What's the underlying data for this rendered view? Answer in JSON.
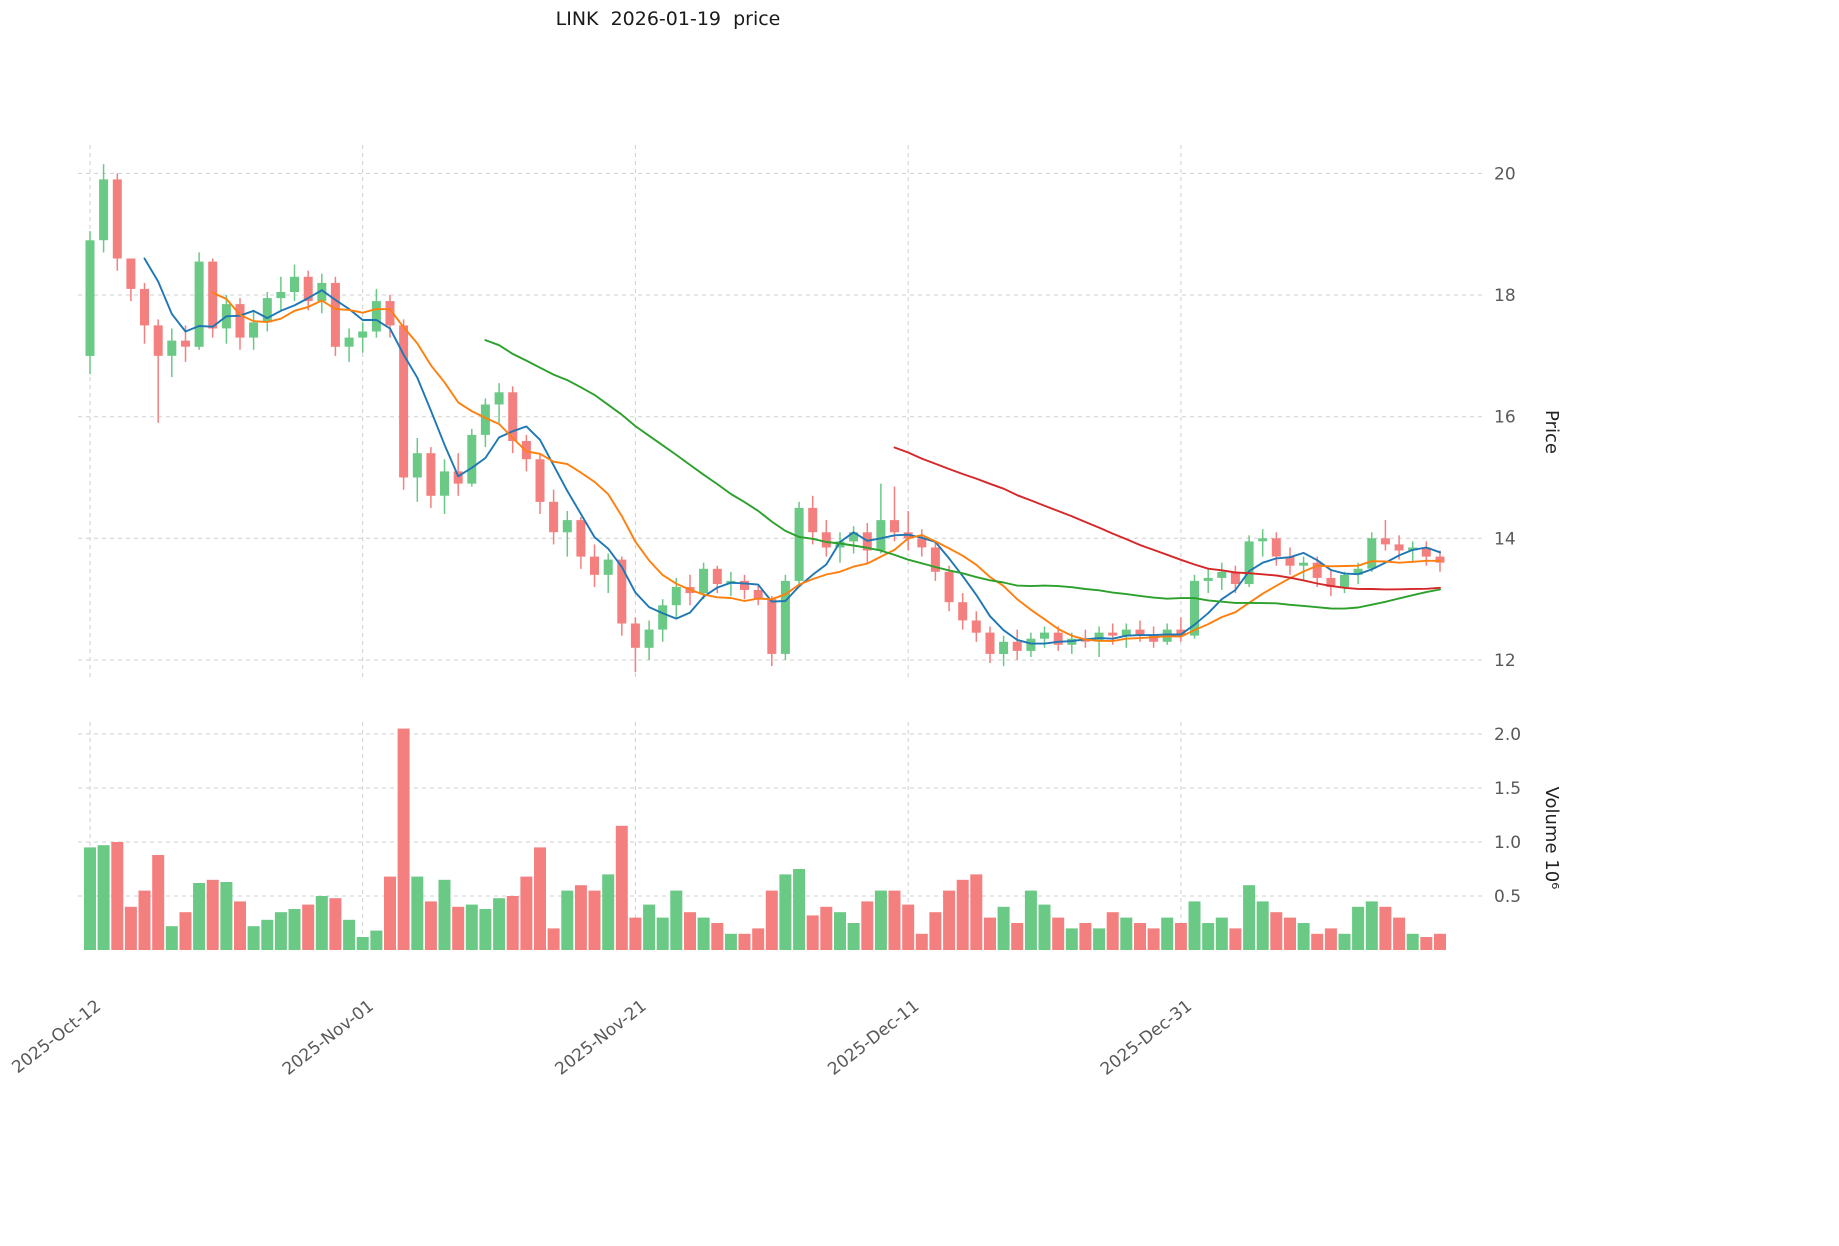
{
  "chart_data": {
    "type": "candlestick",
    "title": "LINK  2026-01-19  price",
    "ylabel_price": "Price",
    "ylabel_volume": "Volume 10⁶",
    "x_ticks": [
      {
        "index": 0,
        "label": "2025-Oct-12"
      },
      {
        "index": 20,
        "label": "2025-Nov-01"
      },
      {
        "index": 40,
        "label": "2025-Nov-21"
      },
      {
        "index": 60,
        "label": "2025-Dec-11"
      },
      {
        "index": 80,
        "label": "2025-Dec-31"
      }
    ],
    "price_ticks": [
      12,
      14,
      16,
      18,
      20
    ],
    "volume_ticks": [
      0.5,
      1.0,
      1.5,
      2.0
    ],
    "price_ylim": [
      11.5,
      20.6
    ],
    "volume_ylim": [
      0,
      2.2
    ],
    "grid": true,
    "moving_averages": [
      {
        "window": 5,
        "color": "#1f77b4"
      },
      {
        "window": 10,
        "color": "#ff7f0e"
      },
      {
        "window": 30,
        "color": "#2ca02c"
      },
      {
        "window": 60,
        "color": "#d62728"
      }
    ],
    "colors": {
      "up": "#69c985",
      "down": "#f37f7f",
      "grid": "#cfcfcf",
      "text": "#595959",
      "title": "#1a1a1a"
    },
    "open": [
      17.0,
      18.9,
      19.9,
      18.6,
      18.1,
      17.5,
      17.0,
      17.25,
      17.15,
      18.55,
      17.45,
      17.85,
      17.3,
      17.55,
      17.95,
      18.05,
      18.3,
      17.9,
      18.2,
      17.15,
      17.3,
      17.4,
      17.9,
      17.5,
      15.0,
      15.4,
      14.7,
      15.1,
      14.9,
      15.7,
      16.2,
      16.4,
      15.6,
      15.3,
      14.6,
      14.1,
      14.3,
      13.7,
      13.4,
      13.65,
      12.6,
      12.2,
      12.5,
      12.9,
      13.2,
      13.1,
      13.5,
      13.25,
      13.3,
      13.15,
      13.0,
      12.1,
      13.3,
      14.5,
      14.1,
      13.85,
      13.95,
      14.1,
      13.8,
      14.3,
      14.1,
      14.0,
      13.85,
      13.45,
      12.95,
      12.65,
      12.45,
      12.1,
      12.3,
      12.15,
      12.35,
      12.45,
      12.25,
      12.35,
      12.3,
      12.45,
      12.4,
      12.5,
      12.4,
      12.3,
      12.5,
      12.4,
      13.3,
      13.35,
      13.45,
      13.25,
      13.95,
      14.0,
      13.7,
      13.55,
      13.6,
      13.35,
      13.2,
      13.4,
      13.5,
      14.0,
      13.9,
      13.8,
      13.85,
      13.7
    ],
    "high": [
      19.05,
      20.15,
      20.0,
      18.35,
      18.2,
      17.6,
      17.45,
      17.5,
      18.7,
      18.6,
      18.0,
      17.95,
      17.75,
      18.05,
      18.3,
      18.5,
      18.4,
      18.35,
      18.3,
      17.45,
      17.55,
      18.1,
      18.0,
      17.6,
      15.65,
      15.5,
      15.3,
      15.4,
      15.8,
      16.3,
      16.55,
      16.5,
      15.7,
      15.4,
      14.8,
      14.45,
      14.35,
      13.9,
      13.75,
      13.7,
      12.7,
      12.65,
      13.0,
      13.35,
      13.4,
      13.6,
      13.55,
      13.45,
      13.4,
      13.25,
      13.05,
      13.4,
      14.6,
      14.7,
      14.3,
      14.1,
      14.2,
      14.25,
      14.9,
      14.85,
      14.45,
      14.15,
      13.95,
      13.55,
      13.1,
      12.8,
      12.55,
      12.4,
      12.5,
      12.45,
      12.55,
      12.55,
      12.45,
      12.5,
      12.55,
      12.6,
      12.6,
      12.65,
      12.55,
      12.6,
      12.7,
      13.4,
      13.5,
      13.6,
      13.55,
      14.05,
      14.15,
      14.1,
      13.85,
      13.7,
      13.7,
      13.5,
      13.45,
      13.6,
      14.1,
      14.3,
      14.05,
      13.95,
      13.95,
      13.8
    ],
    "low": [
      16.7,
      18.7,
      18.4,
      17.9,
      17.2,
      15.9,
      16.65,
      16.9,
      17.1,
      17.3,
      17.2,
      17.1,
      17.1,
      17.4,
      17.75,
      17.9,
      17.75,
      17.7,
      17.0,
      16.9,
      17.05,
      17.3,
      17.3,
      14.8,
      14.6,
      14.5,
      14.4,
      14.7,
      14.85,
      15.5,
      15.9,
      15.4,
      15.1,
      14.4,
      13.9,
      13.7,
      13.5,
      13.2,
      13.1,
      12.4,
      11.8,
      12.0,
      12.3,
      12.7,
      12.9,
      13.0,
      13.1,
      13.05,
      13.0,
      12.9,
      11.9,
      12.0,
      13.2,
      13.9,
      13.7,
      13.6,
      13.75,
      13.6,
      13.75,
      13.95,
      13.8,
      13.7,
      13.3,
      12.8,
      12.5,
      12.3,
      11.95,
      11.9,
      12.0,
      12.05,
      12.2,
      12.15,
      12.1,
      12.2,
      12.05,
      12.25,
      12.2,
      12.3,
      12.2,
      12.25,
      12.3,
      12.35,
      13.1,
      13.15,
      13.1,
      13.2,
      13.7,
      13.55,
      13.4,
      13.3,
      13.2,
      13.05,
      13.1,
      13.25,
      13.45,
      13.8,
      13.65,
      13.6,
      13.55,
      13.45
    ],
    "close": [
      18.9,
      19.9,
      18.6,
      18.1,
      17.5,
      17.0,
      17.25,
      17.15,
      18.55,
      17.45,
      17.85,
      17.3,
      17.55,
      17.95,
      18.05,
      18.3,
      17.9,
      18.2,
      17.15,
      17.3,
      17.4,
      17.9,
      17.5,
      15.0,
      15.4,
      14.7,
      15.1,
      14.9,
      15.7,
      16.2,
      16.4,
      15.6,
      15.3,
      14.6,
      14.1,
      14.3,
      13.7,
      13.4,
      13.65,
      12.6,
      12.2,
      12.5,
      12.9,
      13.2,
      13.1,
      13.5,
      13.25,
      13.3,
      13.15,
      13.0,
      12.1,
      13.3,
      14.5,
      14.1,
      13.85,
      13.95,
      14.1,
      13.8,
      14.3,
      14.1,
      14.0,
      13.85,
      13.45,
      12.95,
      12.65,
      12.45,
      12.1,
      12.3,
      12.15,
      12.35,
      12.45,
      12.25,
      12.35,
      12.3,
      12.45,
      12.4,
      12.5,
      12.4,
      12.3,
      12.5,
      12.4,
      13.3,
      13.35,
      13.45,
      13.25,
      13.95,
      14.0,
      13.7,
      13.55,
      13.6,
      13.35,
      13.2,
      13.4,
      13.5,
      14.0,
      13.9,
      13.8,
      13.85,
      13.7,
      13.6
    ],
    "volume_millions": [
      0.95,
      0.97,
      1.0,
      0.4,
      0.55,
      0.88,
      0.22,
      0.35,
      0.62,
      0.65,
      0.63,
      0.45,
      0.22,
      0.28,
      0.35,
      0.38,
      0.42,
      0.5,
      0.48,
      0.28,
      0.12,
      0.18,
      0.68,
      2.05,
      0.68,
      0.45,
      0.65,
      0.4,
      0.42,
      0.38,
      0.48,
      0.5,
      0.68,
      0.95,
      0.2,
      0.55,
      0.6,
      0.55,
      0.7,
      1.15,
      0.3,
      0.42,
      0.3,
      0.55,
      0.35,
      0.3,
      0.25,
      0.15,
      0.15,
      0.2,
      0.55,
      0.7,
      0.75,
      0.32,
      0.4,
      0.35,
      0.25,
      0.45,
      0.55,
      0.55,
      0.42,
      0.15,
      0.35,
      0.55,
      0.65,
      0.7,
      0.3,
      0.4,
      0.25,
      0.55,
      0.42,
      0.3,
      0.2,
      0.25,
      0.2,
      0.35,
      0.3,
      0.25,
      0.2,
      0.3,
      0.25,
      0.45,
      0.25,
      0.3,
      0.2,
      0.6,
      0.45,
      0.35,
      0.3,
      0.25,
      0.15,
      0.2,
      0.15,
      0.4,
      0.45,
      0.4,
      0.3,
      0.15,
      0.12,
      0.15
    ]
  }
}
